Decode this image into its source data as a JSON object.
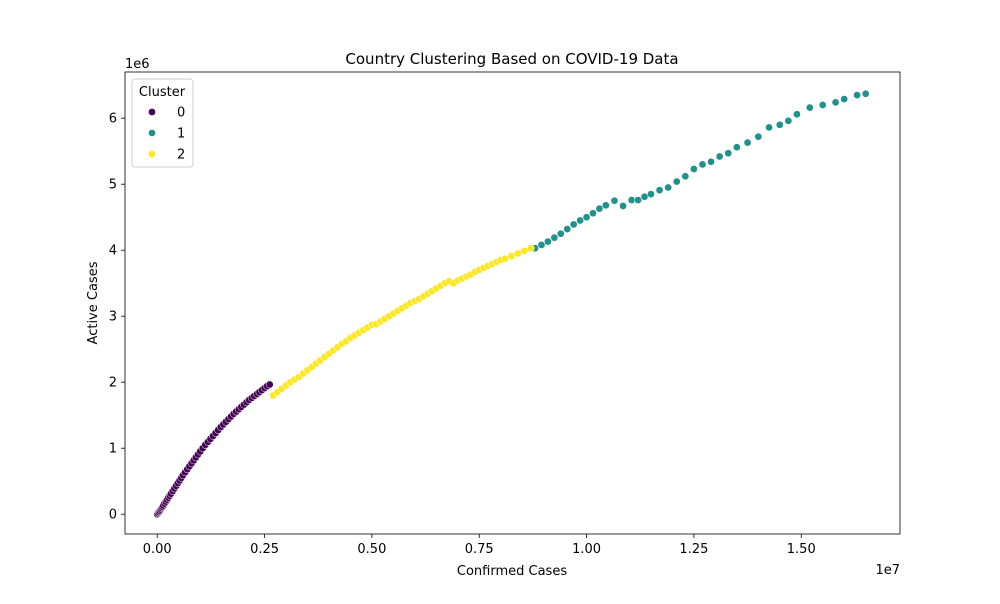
{
  "chart_data": {
    "type": "scatter",
    "title": "Country Clustering Based on COVID-19 Data",
    "xlabel": "Confirmed Cases",
    "ylabel": "Active Cases",
    "x_multiplier_label": "1e7",
    "y_multiplier_label": "1e6",
    "xlim": [
      -750000,
      17300000
    ],
    "ylim": [
      -300000,
      6700000
    ],
    "x_ticks": [
      0,
      2500000,
      5000000,
      7500000,
      10000000,
      12500000,
      15000000
    ],
    "x_tick_labels": [
      "0.00",
      "0.25",
      "0.50",
      "0.75",
      "1.00",
      "1.25",
      "1.50"
    ],
    "y_ticks": [
      0,
      1000000,
      2000000,
      3000000,
      4000000,
      5000000,
      6000000
    ],
    "y_tick_labels": [
      "0",
      "1",
      "2",
      "3",
      "4",
      "5",
      "6"
    ],
    "grid": false,
    "legend": {
      "title": "Cluster",
      "placement": "top-left",
      "entries": [
        {
          "label": "0",
          "color": "#440154"
        },
        {
          "label": "1",
          "color": "#21918c"
        },
        {
          "label": "2",
          "color": "#fde725"
        }
      ]
    },
    "series": [
      {
        "name": "0",
        "color": "#440154",
        "x": [
          0,
          20000,
          40000,
          60000,
          80000,
          100000,
          120000,
          140000,
          170000,
          200000,
          230000,
          260000,
          290000,
          320000,
          360000,
          400000,
          440000,
          480000,
          520000,
          560000,
          600000,
          650000,
          700000,
          750000,
          800000,
          850000,
          900000,
          950000,
          1000000,
          1060000,
          1120000,
          1180000,
          1240000,
          1300000,
          1360000,
          1420000,
          1480000,
          1540000,
          1600000,
          1660000,
          1720000,
          1780000,
          1840000,
          1900000,
          1960000,
          2020000,
          2080000,
          2140000,
          2200000,
          2260000,
          2320000,
          2380000,
          2440000,
          2500000,
          2560000,
          2620000
        ],
        "y": [
          0,
          15000,
          30000,
          50000,
          70000,
          90000,
          110000,
          130000,
          160000,
          190000,
          220000,
          250000,
          280000,
          310000,
          350000,
          390000,
          430000,
          470000,
          510000,
          550000,
          590000,
          635000,
          680000,
          725000,
          770000,
          815000,
          860000,
          905000,
          950000,
          1000000,
          1050000,
          1095000,
          1140000,
          1185000,
          1230000,
          1275000,
          1320000,
          1360000,
          1400000,
          1440000,
          1480000,
          1520000,
          1555000,
          1590000,
          1625000,
          1660000,
          1695000,
          1730000,
          1760000,
          1790000,
          1820000,
          1850000,
          1880000,
          1910000,
          1940000,
          1965000
        ]
      },
      {
        "name": "1",
        "color": "#21918c",
        "x": [
          8800000,
          8950000,
          9100000,
          9250000,
          9400000,
          9550000,
          9700000,
          9850000,
          10000000,
          10150000,
          10300000,
          10450000,
          10650000,
          10850000,
          11050000,
          11200000,
          11350000,
          11500000,
          11700000,
          11900000,
          12100000,
          12300000,
          12500000,
          12700000,
          12900000,
          13100000,
          13300000,
          13500000,
          13750000,
          14000000,
          14250000,
          14500000,
          14700000,
          14900000,
          15200000,
          15500000,
          15800000,
          16000000,
          16300000,
          16500000
        ],
        "y": [
          4030000,
          4080000,
          4130000,
          4190000,
          4250000,
          4320000,
          4390000,
          4450000,
          4500000,
          4560000,
          4630000,
          4680000,
          4750000,
          4670000,
          4760000,
          4760000,
          4810000,
          4850000,
          4910000,
          4950000,
          5040000,
          5120000,
          5230000,
          5300000,
          5340000,
          5420000,
          5470000,
          5560000,
          5630000,
          5720000,
          5860000,
          5900000,
          5960000,
          6060000,
          6160000,
          6200000,
          6240000,
          6290000,
          6350000,
          6370000
        ]
      },
      {
        "name": "2",
        "color": "#fde725",
        "x": [
          2700000,
          2800000,
          2900000,
          3000000,
          3100000,
          3200000,
          3300000,
          3400000,
          3500000,
          3600000,
          3700000,
          3800000,
          3900000,
          4000000,
          4100000,
          4200000,
          4300000,
          4400000,
          4500000,
          4600000,
          4700000,
          4800000,
          4900000,
          5000000,
          5100000,
          5200000,
          5300000,
          5400000,
          5500000,
          5600000,
          5700000,
          5800000,
          5900000,
          6000000,
          6100000,
          6200000,
          6300000,
          6400000,
          6500000,
          6600000,
          6700000,
          6800000,
          6900000,
          7000000,
          7100000,
          7200000,
          7300000,
          7400000,
          7500000,
          7600000,
          7700000,
          7800000,
          7900000,
          8000000,
          8100000,
          8250000,
          8400000,
          8550000,
          8700000
        ],
        "y": [
          1800000,
          1850000,
          1900000,
          1950000,
          2000000,
          2040000,
          2080000,
          2130000,
          2180000,
          2230000,
          2280000,
          2330000,
          2380000,
          2430000,
          2480000,
          2530000,
          2580000,
          2620000,
          2670000,
          2710000,
          2750000,
          2790000,
          2830000,
          2870000,
          2880000,
          2920000,
          2960000,
          3000000,
          3040000,
          3080000,
          3120000,
          3160000,
          3200000,
          3230000,
          3260000,
          3300000,
          3340000,
          3380000,
          3420000,
          3460000,
          3500000,
          3530000,
          3500000,
          3540000,
          3570000,
          3600000,
          3630000,
          3670000,
          3700000,
          3730000,
          3760000,
          3790000,
          3820000,
          3850000,
          3870000,
          3910000,
          3950000,
          3990000,
          4030000
        ]
      }
    ]
  }
}
